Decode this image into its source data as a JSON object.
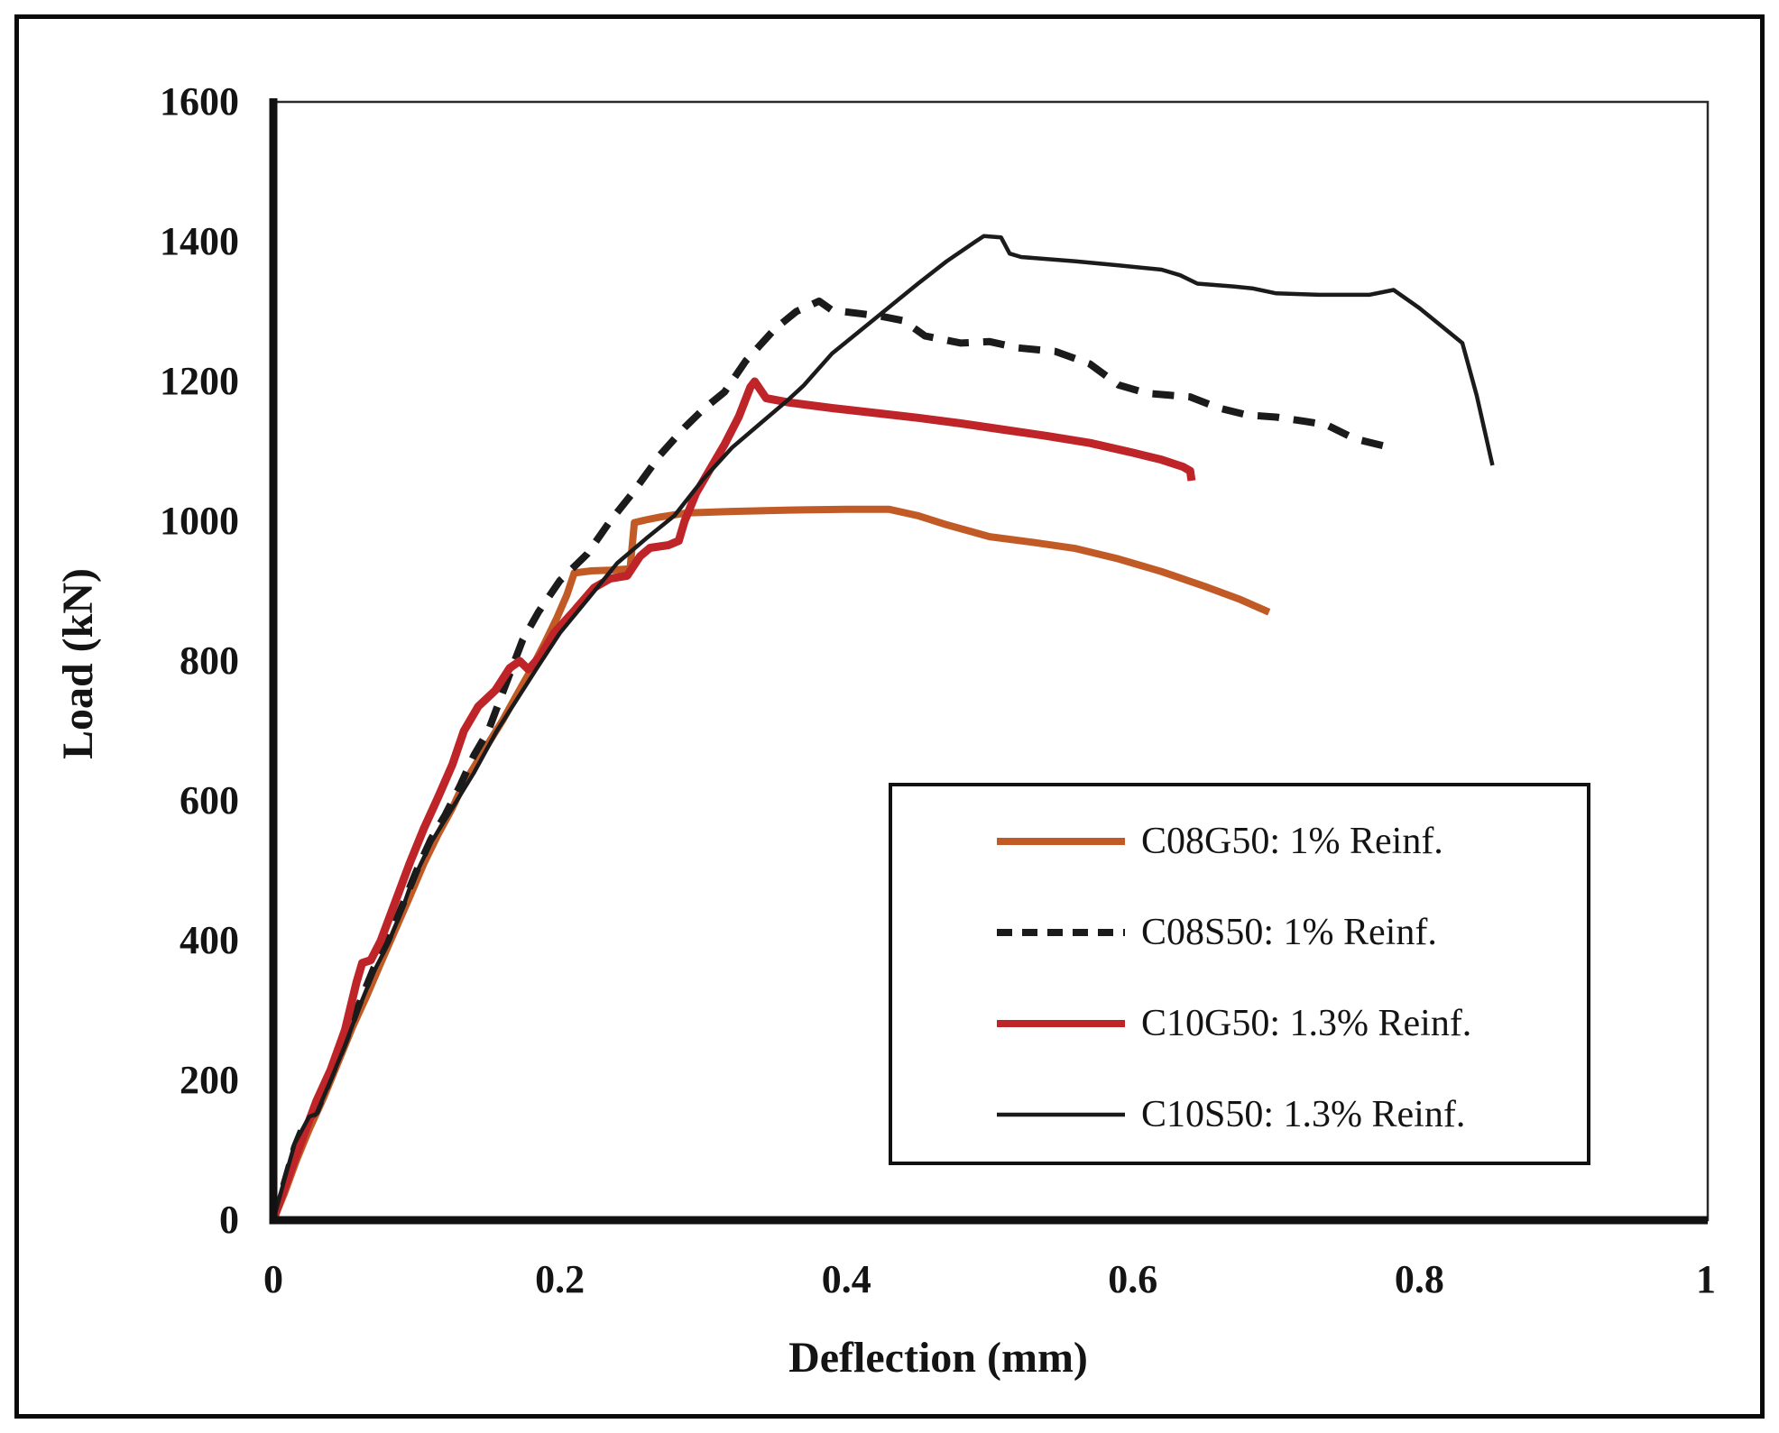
{
  "figure": {
    "background": "#ffffff",
    "border_color": "#0a0a0a"
  },
  "chart_data": {
    "type": "line",
    "title": "",
    "xlabel": "Deflection (mm)",
    "ylabel": "Load (kN)",
    "xlim": [
      0,
      1
    ],
    "ylim": [
      0,
      1600
    ],
    "grid": false,
    "legend_position": "inside-lower-right",
    "x_ticks": [
      {
        "value": 0,
        "label": "0"
      },
      {
        "value": 0.2,
        "label": "0.2"
      },
      {
        "value": 0.4,
        "label": "0.4"
      },
      {
        "value": 0.6,
        "label": "0.6"
      },
      {
        "value": 0.8,
        "label": "0.8"
      },
      {
        "value": 1,
        "label": "1"
      }
    ],
    "y_ticks": [
      {
        "value": 0,
        "label": "0"
      },
      {
        "value": 200,
        "label": "200"
      },
      {
        "value": 400,
        "label": "400"
      },
      {
        "value": 600,
        "label": "600"
      },
      {
        "value": 800,
        "label": "800"
      },
      {
        "value": 1000,
        "label": "1000"
      },
      {
        "value": 1200,
        "label": "1200"
      },
      {
        "value": 1400,
        "label": "1400"
      },
      {
        "value": 1600,
        "label": "1600"
      }
    ],
    "axis_color": "#111111",
    "frame_color": "#2a2a2a",
    "series": [
      {
        "name": "C08G50",
        "label": "C08G50: 1% Reinf.",
        "color": "#C25A26",
        "dash": null,
        "width": 8,
        "points": [
          [
            0,
            0
          ],
          [
            0.008,
            40
          ],
          [
            0.016,
            85
          ],
          [
            0.025,
            130
          ],
          [
            0.035,
            175
          ],
          [
            0.045,
            225
          ],
          [
            0.055,
            275
          ],
          [
            0.065,
            320
          ],
          [
            0.075,
            368
          ],
          [
            0.085,
            415
          ],
          [
            0.095,
            462
          ],
          [
            0.105,
            510
          ],
          [
            0.115,
            552
          ],
          [
            0.125,
            590
          ],
          [
            0.133,
            625
          ],
          [
            0.14,
            648
          ],
          [
            0.15,
            682
          ],
          [
            0.16,
            715
          ],
          [
            0.17,
            752
          ],
          [
            0.18,
            788
          ],
          [
            0.19,
            828
          ],
          [
            0.198,
            862
          ],
          [
            0.205,
            895
          ],
          [
            0.21,
            926
          ],
          [
            0.222,
            929
          ],
          [
            0.235,
            930
          ],
          [
            0.249,
            932
          ],
          [
            0.252,
            998
          ],
          [
            0.26,
            1002
          ],
          [
            0.27,
            1006
          ],
          [
            0.289,
            1012
          ],
          [
            0.32,
            1014
          ],
          [
            0.36,
            1016
          ],
          [
            0.4,
            1017
          ],
          [
            0.43,
            1017
          ],
          [
            0.45,
            1008
          ],
          [
            0.47,
            995
          ],
          [
            0.5,
            978
          ],
          [
            0.53,
            970
          ],
          [
            0.56,
            961
          ],
          [
            0.59,
            946
          ],
          [
            0.62,
            928
          ],
          [
            0.65,
            907
          ],
          [
            0.675,
            888
          ],
          [
            0.695,
            870
          ]
        ]
      },
      {
        "name": "C08S50",
        "label": "C08S50: 1% Reinf.",
        "color": "#1b1b1b",
        "dash": "24 16",
        "width": 8,
        "points": [
          [
            0,
            0
          ],
          [
            0.008,
            55
          ],
          [
            0.015,
            105
          ],
          [
            0.022,
            140
          ],
          [
            0.03,
            155
          ],
          [
            0.04,
            205
          ],
          [
            0.05,
            255
          ],
          [
            0.06,
            310
          ],
          [
            0.07,
            360
          ],
          [
            0.08,
            400
          ],
          [
            0.09,
            450
          ],
          [
            0.1,
            500
          ],
          [
            0.11,
            545
          ],
          [
            0.12,
            580
          ],
          [
            0.13,
            620
          ],
          [
            0.14,
            665
          ],
          [
            0.15,
            700
          ],
          [
            0.161,
            760
          ],
          [
            0.174,
            830
          ],
          [
            0.185,
            870
          ],
          [
            0.2,
            915
          ],
          [
            0.219,
            953
          ],
          [
            0.235,
            1000
          ],
          [
            0.251,
            1041
          ],
          [
            0.27,
            1095
          ],
          [
            0.287,
            1134
          ],
          [
            0.3,
            1160
          ],
          [
            0.315,
            1185
          ],
          [
            0.33,
            1230
          ],
          [
            0.35,
            1275
          ],
          [
            0.365,
            1300
          ],
          [
            0.381,
            1315
          ],
          [
            0.39,
            1302
          ],
          [
            0.41,
            1297
          ],
          [
            0.425,
            1293
          ],
          [
            0.44,
            1287
          ],
          [
            0.455,
            1265
          ],
          [
            0.48,
            1255
          ],
          [
            0.5,
            1257
          ],
          [
            0.52,
            1248
          ],
          [
            0.546,
            1243
          ],
          [
            0.57,
            1225
          ],
          [
            0.59,
            1195
          ],
          [
            0.61,
            1183
          ],
          [
            0.64,
            1178
          ],
          [
            0.66,
            1162
          ],
          [
            0.68,
            1152
          ],
          [
            0.7,
            1149
          ],
          [
            0.72,
            1143
          ],
          [
            0.735,
            1138
          ],
          [
            0.755,
            1118
          ],
          [
            0.777,
            1107
          ]
        ]
      },
      {
        "name": "C10G50",
        "label": "C10G50: 1.3% Reinf.",
        "color": "#BF2428",
        "dash": null,
        "width": 9,
        "points": [
          [
            0,
            0
          ],
          [
            0.006,
            35
          ],
          [
            0.012,
            70
          ],
          [
            0.02,
            115
          ],
          [
            0.03,
            170
          ],
          [
            0.04,
            215
          ],
          [
            0.05,
            272
          ],
          [
            0.058,
            340
          ],
          [
            0.062,
            368
          ],
          [
            0.068,
            372
          ],
          [
            0.075,
            400
          ],
          [
            0.085,
            455
          ],
          [
            0.095,
            510
          ],
          [
            0.105,
            560
          ],
          [
            0.115,
            605
          ],
          [
            0.125,
            652
          ],
          [
            0.133,
            700
          ],
          [
            0.143,
            735
          ],
          [
            0.155,
            758
          ],
          [
            0.165,
            790
          ],
          [
            0.172,
            800
          ],
          [
            0.178,
            788
          ],
          [
            0.186,
            806
          ],
          [
            0.196,
            840
          ],
          [
            0.21,
            872
          ],
          [
            0.224,
            905
          ],
          [
            0.235,
            918
          ],
          [
            0.247,
            922
          ],
          [
            0.256,
            950
          ],
          [
            0.263,
            962
          ],
          [
            0.276,
            966
          ],
          [
            0.283,
            972
          ],
          [
            0.287,
            1000
          ],
          [
            0.295,
            1040
          ],
          [
            0.305,
            1075
          ],
          [
            0.315,
            1110
          ],
          [
            0.325,
            1150
          ],
          [
            0.333,
            1192
          ],
          [
            0.336,
            1200
          ],
          [
            0.344,
            1176
          ],
          [
            0.36,
            1170
          ],
          [
            0.39,
            1162
          ],
          [
            0.42,
            1155
          ],
          [
            0.45,
            1148
          ],
          [
            0.48,
            1140
          ],
          [
            0.51,
            1131
          ],
          [
            0.54,
            1122
          ],
          [
            0.57,
            1112
          ],
          [
            0.6,
            1098
          ],
          [
            0.62,
            1088
          ],
          [
            0.635,
            1078
          ],
          [
            0.64,
            1072
          ],
          [
            0.641,
            1058
          ]
        ]
      },
      {
        "name": "C10S50",
        "label": "C10S50: 1.3% Reinf.",
        "color": "#1b1b1b",
        "dash": null,
        "width": 4.5,
        "points": [
          [
            0,
            0
          ],
          [
            0.008,
            60
          ],
          [
            0.015,
            110
          ],
          [
            0.025,
            148
          ],
          [
            0.03,
            152
          ],
          [
            0.04,
            200
          ],
          [
            0.05,
            250
          ],
          [
            0.06,
            305
          ],
          [
            0.07,
            355
          ],
          [
            0.08,
            395
          ],
          [
            0.09,
            445
          ],
          [
            0.096,
            480
          ],
          [
            0.11,
            540
          ],
          [
            0.125,
            590
          ],
          [
            0.14,
            640
          ],
          [
            0.156,
            700
          ],
          [
            0.17,
            745
          ],
          [
            0.184,
            790
          ],
          [
            0.2,
            840
          ],
          [
            0.22,
            890
          ],
          [
            0.24,
            940
          ],
          [
            0.26,
            975
          ],
          [
            0.28,
            1008
          ],
          [
            0.3,
            1060
          ],
          [
            0.32,
            1105
          ],
          [
            0.34,
            1140
          ],
          [
            0.36,
            1175
          ],
          [
            0.37,
            1194
          ],
          [
            0.39,
            1240
          ],
          [
            0.42,
            1290
          ],
          [
            0.45,
            1340
          ],
          [
            0.47,
            1372
          ],
          [
            0.49,
            1400
          ],
          [
            0.496,
            1408
          ],
          [
            0.508,
            1406
          ],
          [
            0.514,
            1383
          ],
          [
            0.522,
            1378
          ],
          [
            0.56,
            1372
          ],
          [
            0.59,
            1366
          ],
          [
            0.62,
            1360
          ],
          [
            0.633,
            1352
          ],
          [
            0.645,
            1340
          ],
          [
            0.67,
            1336
          ],
          [
            0.684,
            1333
          ],
          [
            0.7,
            1326
          ],
          [
            0.73,
            1324
          ],
          [
            0.765,
            1324
          ],
          [
            0.782,
            1331
          ],
          [
            0.8,
            1305
          ],
          [
            0.83,
            1255
          ],
          [
            0.84,
            1180
          ],
          [
            0.851,
            1080
          ]
        ]
      }
    ]
  }
}
